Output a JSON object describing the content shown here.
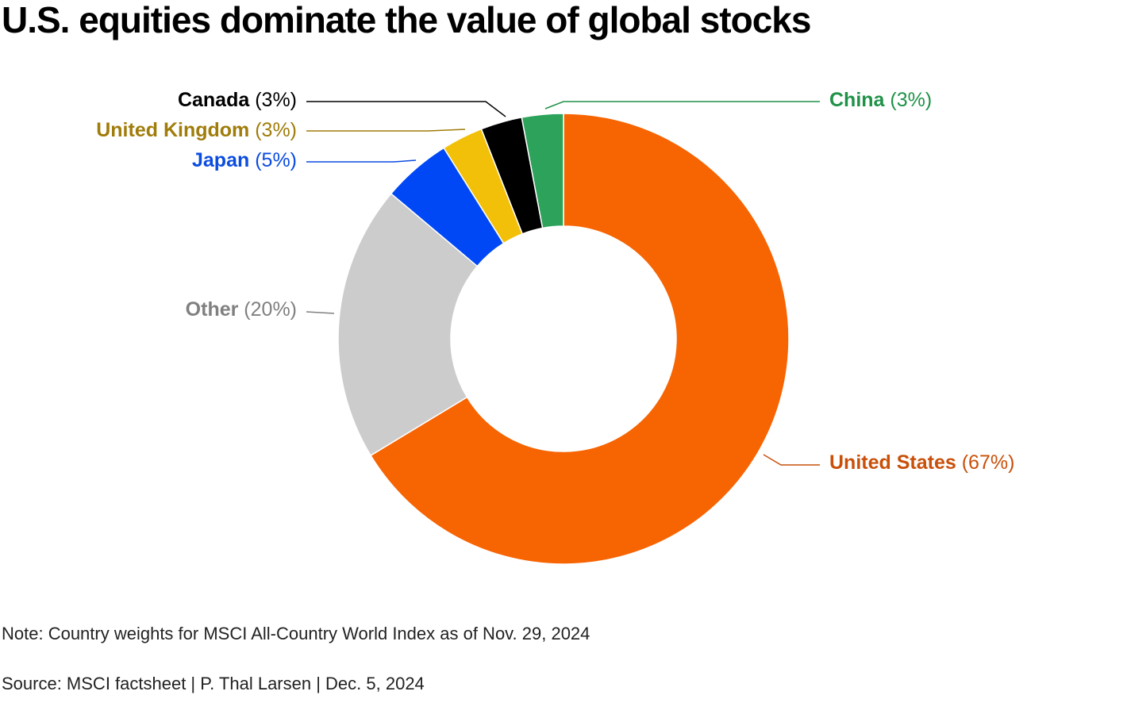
{
  "title": "U.S. equities dominate the value of global stocks",
  "note": "Note: Country weights for MSCI All-Country World Index as of Nov. 29, 2024",
  "source": "Source: MSCI factsheet | P. Thal Larsen | Dec. 5, 2024",
  "chart_data": {
    "type": "pie",
    "variant": "donut",
    "start": "12 o'clock, clockwise",
    "slices": [
      {
        "id": "united-states",
        "name": "United States",
        "pct_text": "(67%)",
        "value": 67,
        "color": "#f76402",
        "label_color": "#c9500a",
        "side": "right"
      },
      {
        "id": "other",
        "name": "Other",
        "pct_text": "(20%)",
        "value": 20,
        "color": "#cccccc",
        "label_color": "#808080",
        "side": "left"
      },
      {
        "id": "japan",
        "name": "Japan",
        "pct_text": "(5%)",
        "value": 5,
        "color": "#0048f5",
        "label_color": "#0b4ce0",
        "side": "left"
      },
      {
        "id": "united-kingdom",
        "name": "United Kingdom",
        "pct_text": "(3%)",
        "value": 3,
        "color": "#f2c008",
        "label_color": "#a07c0a",
        "side": "left"
      },
      {
        "id": "canada",
        "name": "Canada",
        "pct_text": "(3%)",
        "value": 3,
        "color": "#000000",
        "label_color": "#000000",
        "side": "left"
      },
      {
        "id": "china",
        "name": "China",
        "pct_text": "(3%)",
        "value": 3,
        "color": "#2ca25a",
        "label_color": "#1f9248",
        "side": "right"
      }
    ]
  }
}
